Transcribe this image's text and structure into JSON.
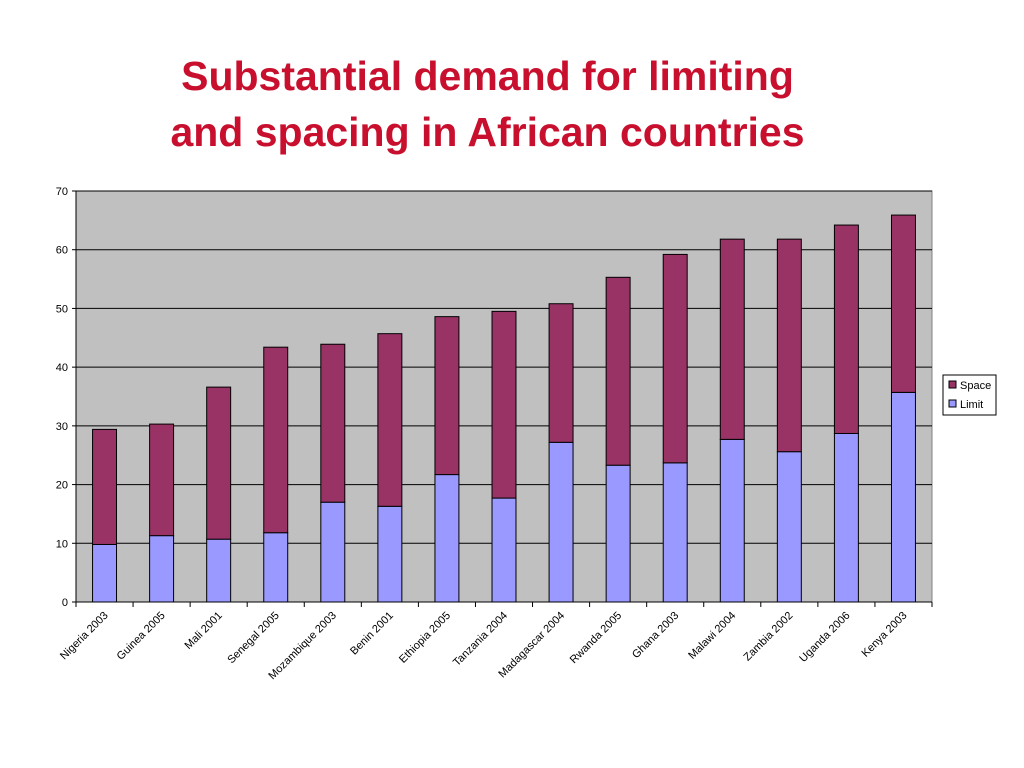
{
  "slide": {
    "title_line1": "Substantial demand for limiting",
    "title_line2": "and spacing in African countries"
  },
  "chart_data": {
    "type": "bar",
    "stacked": true,
    "categories": [
      "Nigeria 2003",
      "Guinea 2005",
      "Mali 2001",
      "Senegal 2005",
      "Mozambique 2003",
      "Benin 2001",
      "Ethiopia 2005",
      "Tanzania 2004",
      "Madagascar 2004",
      "Rwanda 2005",
      "Ghana 2003",
      "Malawi 2004",
      "Zambia 2002",
      "Uganda 2006",
      "Kenya 2003"
    ],
    "series": [
      {
        "name": "Limit",
        "color": "#9999ff",
        "values": [
          9.8,
          11.3,
          10.7,
          11.8,
          17.0,
          16.3,
          21.7,
          17.7,
          27.2,
          23.3,
          23.7,
          27.7,
          25.6,
          28.7,
          35.7
        ]
      },
      {
        "name": "Space",
        "color": "#993366",
        "values": [
          19.6,
          19.0,
          25.9,
          31.6,
          26.9,
          29.4,
          26.9,
          31.8,
          23.6,
          32.0,
          35.5,
          34.1,
          36.2,
          35.5,
          30.2
        ]
      }
    ],
    "legend_order": [
      "Space",
      "Limit"
    ],
    "ylim": [
      0,
      70
    ],
    "yticks": [
      0,
      10,
      20,
      30,
      40,
      50,
      60,
      70
    ],
    "grid": true,
    "plot_background": "#c0c0c0",
    "legend_position": "right"
  }
}
